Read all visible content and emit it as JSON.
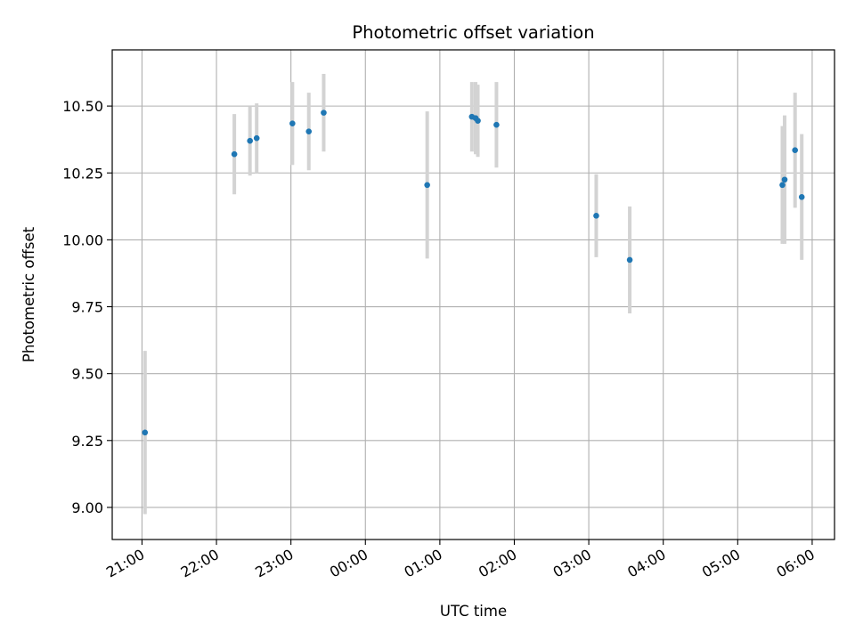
{
  "chart_data": {
    "type": "scatter",
    "title": "Photometric offset variation",
    "xlabel": "UTC time",
    "ylabel": "Photometric offset",
    "grid": true,
    "x_unit": "hours (UTC, continuing past midnight)",
    "xlim": [
      20.6,
      30.3
    ],
    "ylim": [
      8.88,
      10.71
    ],
    "x_ticks": [
      {
        "value": 21,
        "label": "21:00"
      },
      {
        "value": 22,
        "label": "22:00"
      },
      {
        "value": 23,
        "label": "23:00"
      },
      {
        "value": 24,
        "label": "00:00"
      },
      {
        "value": 25,
        "label": "01:00"
      },
      {
        "value": 26,
        "label": "02:00"
      },
      {
        "value": 27,
        "label": "03:00"
      },
      {
        "value": 28,
        "label": "04:00"
      },
      {
        "value": 29,
        "label": "05:00"
      },
      {
        "value": 30,
        "label": "06:00"
      }
    ],
    "y_ticks": [
      {
        "value": 9.0,
        "label": "9.00"
      },
      {
        "value": 9.25,
        "label": "9.25"
      },
      {
        "value": 9.5,
        "label": "9.50"
      },
      {
        "value": 9.75,
        "label": "9.75"
      },
      {
        "value": 10.0,
        "label": "10.00"
      },
      {
        "value": 10.25,
        "label": "10.25"
      },
      {
        "value": 10.5,
        "label": "10.50"
      }
    ],
    "point_color": "#1f77b4",
    "errorbar_color": "#d3d3d3",
    "points": [
      {
        "x": 21.04,
        "y": 9.28,
        "err": 0.305
      },
      {
        "x": 22.24,
        "y": 10.32,
        "err": 0.15
      },
      {
        "x": 22.45,
        "y": 10.37,
        "err": 0.13
      },
      {
        "x": 22.54,
        "y": 10.38,
        "err": 0.13
      },
      {
        "x": 23.02,
        "y": 10.435,
        "err": 0.155
      },
      {
        "x": 23.24,
        "y": 10.405,
        "err": 0.145
      },
      {
        "x": 23.44,
        "y": 10.475,
        "err": 0.145
      },
      {
        "x": 24.83,
        "y": 10.205,
        "err": 0.275
      },
      {
        "x": 25.43,
        "y": 10.46,
        "err": 0.13
      },
      {
        "x": 25.48,
        "y": 10.455,
        "err": 0.135
      },
      {
        "x": 25.51,
        "y": 10.445,
        "err": 0.135
      },
      {
        "x": 25.76,
        "y": 10.43,
        "err": 0.16
      },
      {
        "x": 27.1,
        "y": 10.09,
        "err": 0.155
      },
      {
        "x": 27.55,
        "y": 9.925,
        "err": 0.2
      },
      {
        "x": 29.6,
        "y": 10.205,
        "err": 0.22
      },
      {
        "x": 29.63,
        "y": 10.225,
        "err": 0.24
      },
      {
        "x": 29.77,
        "y": 10.335,
        "err": 0.215
      },
      {
        "x": 29.86,
        "y": 10.16,
        "err": 0.235
      }
    ]
  }
}
